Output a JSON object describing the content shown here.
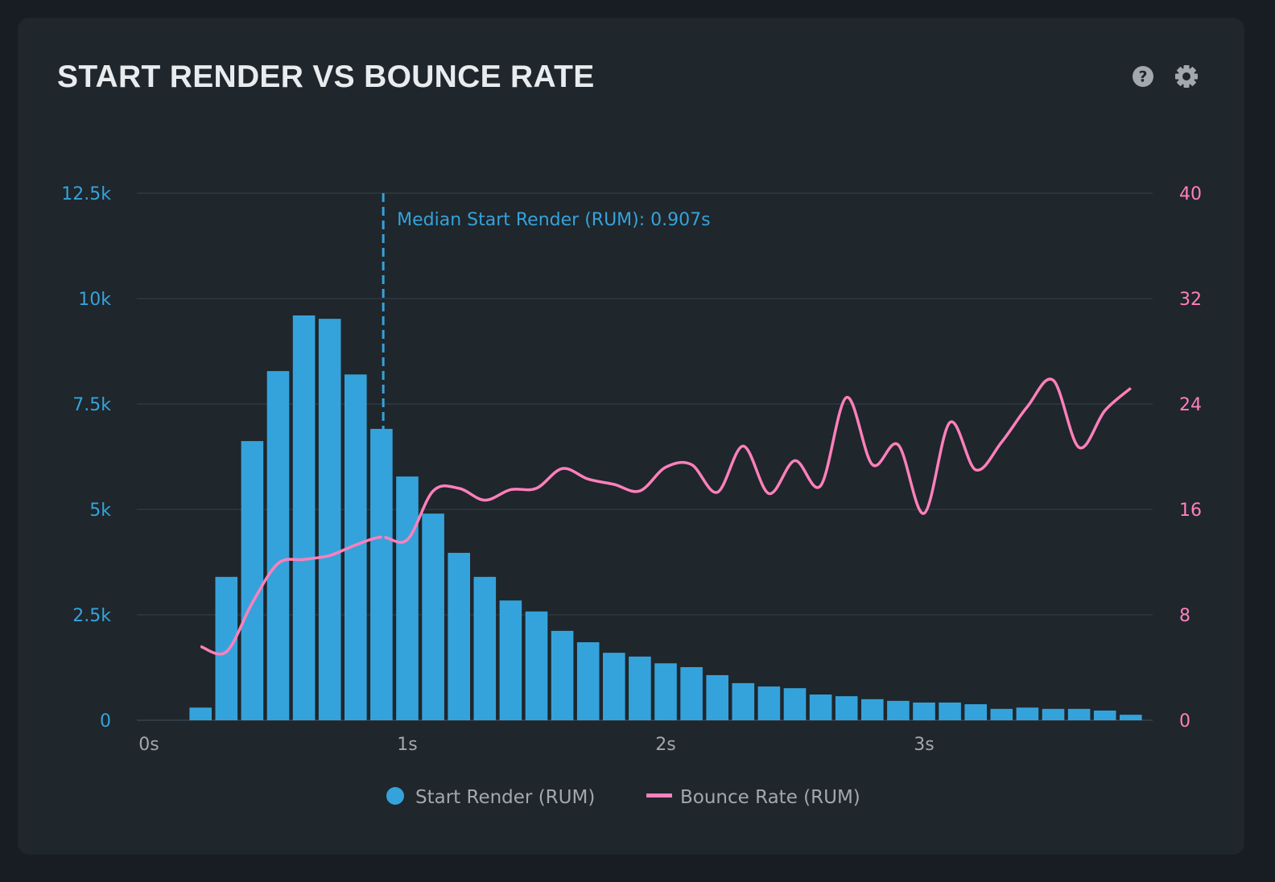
{
  "header": {
    "title": "START RENDER VS BOUNCE RATE",
    "help_icon": "question-circle-icon",
    "settings_icon": "gear-icon"
  },
  "colors": {
    "bars": "#35a3db",
    "line": "#ff80bb",
    "left_axis": "#35a3db",
    "right_axis": "#ff80bb",
    "x_axis": "#a3a8ad"
  },
  "chart_data": {
    "type": "bar+line",
    "title": "START RENDER VS BOUNCE RATE",
    "x": [
      0.2,
      0.3,
      0.4,
      0.5,
      0.6,
      0.7,
      0.8,
      0.9,
      1.0,
      1.1,
      1.2,
      1.3,
      1.4,
      1.5,
      1.6,
      1.7,
      1.8,
      1.9,
      2.0,
      2.1,
      2.2,
      2.3,
      2.4,
      2.5,
      2.6,
      2.7,
      2.8,
      2.9,
      3.0,
      3.1,
      3.2,
      3.3,
      3.4,
      3.5,
      3.6,
      3.7,
      3.8
    ],
    "xlim": [
      0,
      3.9
    ],
    "x_ticks": [
      {
        "value": 0,
        "label": "0s"
      },
      {
        "value": 1,
        "label": "1s"
      },
      {
        "value": 2,
        "label": "2s"
      },
      {
        "value": 3,
        "label": "3s"
      }
    ],
    "y_left": {
      "lim": [
        0,
        12500
      ],
      "ticks": [
        {
          "value": 0,
          "label": "0"
        },
        {
          "value": 2500,
          "label": "2.5k"
        },
        {
          "value": 5000,
          "label": "5k"
        },
        {
          "value": 7500,
          "label": "7.5k"
        },
        {
          "value": 10000,
          "label": "10k"
        },
        {
          "value": 12500,
          "label": "12.5k"
        }
      ]
    },
    "y_right": {
      "lim": [
        0,
        40
      ],
      "ticks": [
        {
          "value": 0,
          "label": "0"
        },
        {
          "value": 8,
          "label": "8"
        },
        {
          "value": 16,
          "label": "16"
        },
        {
          "value": 24,
          "label": "24"
        },
        {
          "value": 32,
          "label": "32"
        },
        {
          "value": 40,
          "label": "40"
        }
      ]
    },
    "grid": true,
    "series": [
      {
        "name": "Start Render (RUM)",
        "type": "bar",
        "axis": "left",
        "values": [
          300,
          3400,
          6620,
          8280,
          9600,
          9520,
          8200,
          6910,
          5780,
          4900,
          3970,
          3400,
          2840,
          2580,
          2120,
          1850,
          1600,
          1510,
          1350,
          1260,
          1070,
          880,
          800,
          760,
          610,
          570,
          500,
          460,
          420,
          420,
          380,
          270,
          300,
          270,
          270,
          230,
          130
        ]
      },
      {
        "name": "Bounce Rate (RUM)",
        "type": "line",
        "axis": "right",
        "values": [
          5.6,
          5.2,
          8.9,
          11.9,
          12.2,
          12.5,
          13.3,
          13.9,
          13.7,
          17.4,
          17.6,
          16.7,
          17.5,
          17.6,
          19.1,
          18.3,
          17.9,
          17.4,
          19.2,
          19.4,
          17.3,
          20.8,
          17.2,
          19.7,
          17.8,
          24.5,
          19.4,
          20.9,
          15.7,
          22.6,
          19.0,
          21.1,
          23.8,
          25.8,
          20.7,
          23.5,
          25.2
        ]
      }
    ],
    "annotation": {
      "value": 0.907,
      "label": "Median Start Render (RUM): 0.907s"
    },
    "legend": {
      "placement": "bottom",
      "items": [
        "Start Render (RUM)",
        "Bounce Rate (RUM)"
      ]
    }
  }
}
